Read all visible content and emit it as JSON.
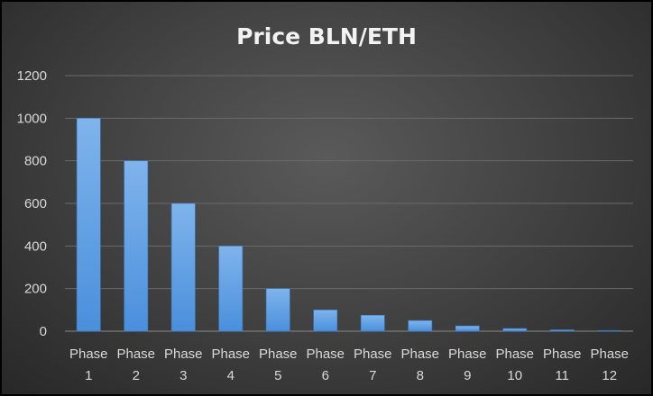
{
  "chart_data": {
    "type": "bar",
    "title": "Price BLN/ETH",
    "xlabel": "",
    "ylabel": "",
    "categories": [
      [
        "Phase",
        "1"
      ],
      [
        "Phase",
        "2"
      ],
      [
        "Phase",
        "3"
      ],
      [
        "Phase",
        "4"
      ],
      [
        "Phase",
        "5"
      ],
      [
        "Phase",
        "6"
      ],
      [
        "Phase",
        "7"
      ],
      [
        "Phase",
        "8"
      ],
      [
        "Phase",
        "9"
      ],
      [
        "Phase",
        "10"
      ],
      [
        "Phase",
        "11"
      ],
      [
        "Phase",
        "12"
      ]
    ],
    "values": [
      1000,
      800,
      600,
      400,
      200,
      100,
      75,
      50,
      25,
      12.5,
      6.25,
      3.125
    ],
    "ylim": [
      0,
      1200
    ],
    "yticks": [
      0,
      200,
      400,
      600,
      800,
      1000,
      1200
    ],
    "grid": true,
    "legend": "none",
    "colors": {
      "bar_top": "#7fb4ec",
      "bar_bottom": "#4a8fdc",
      "bar_edge": "#3a78c0",
      "grid": "#6a6a6a",
      "axis": "#8a8a8a",
      "text": "#d9d9d9",
      "title": "#f2f2f2"
    }
  }
}
